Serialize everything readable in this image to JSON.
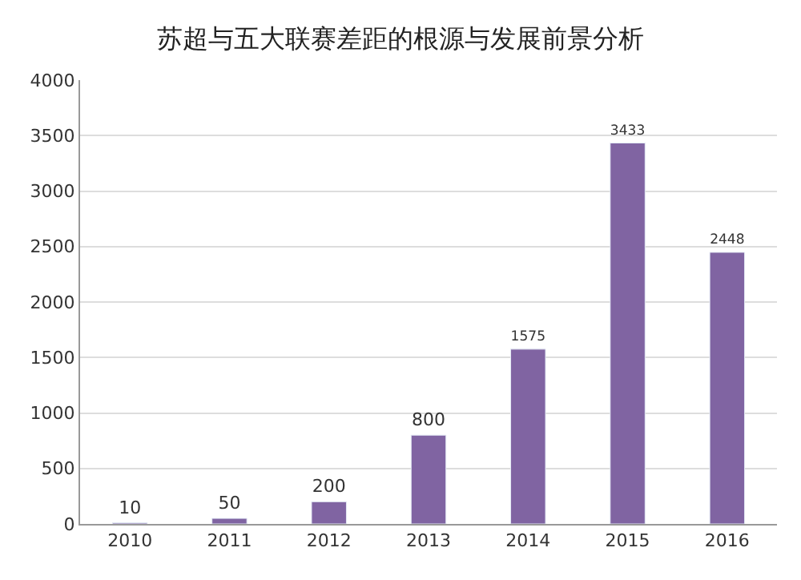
{
  "chart_data": {
    "type": "bar",
    "title": "苏超与五大联赛差距的根源与发展前景分析",
    "categories": [
      "2010",
      "2011",
      "2012",
      "2013",
      "2014",
      "2015",
      "2016"
    ],
    "values": [
      10,
      50,
      200,
      800,
      1575,
      3433,
      2448
    ],
    "color": "#8064a2",
    "ylim": [
      0,
      4000
    ],
    "yticks": [
      0,
      500,
      1000,
      1500,
      2000,
      2500,
      3000,
      3500,
      4000
    ],
    "grid": "y",
    "data_labels": true
  }
}
